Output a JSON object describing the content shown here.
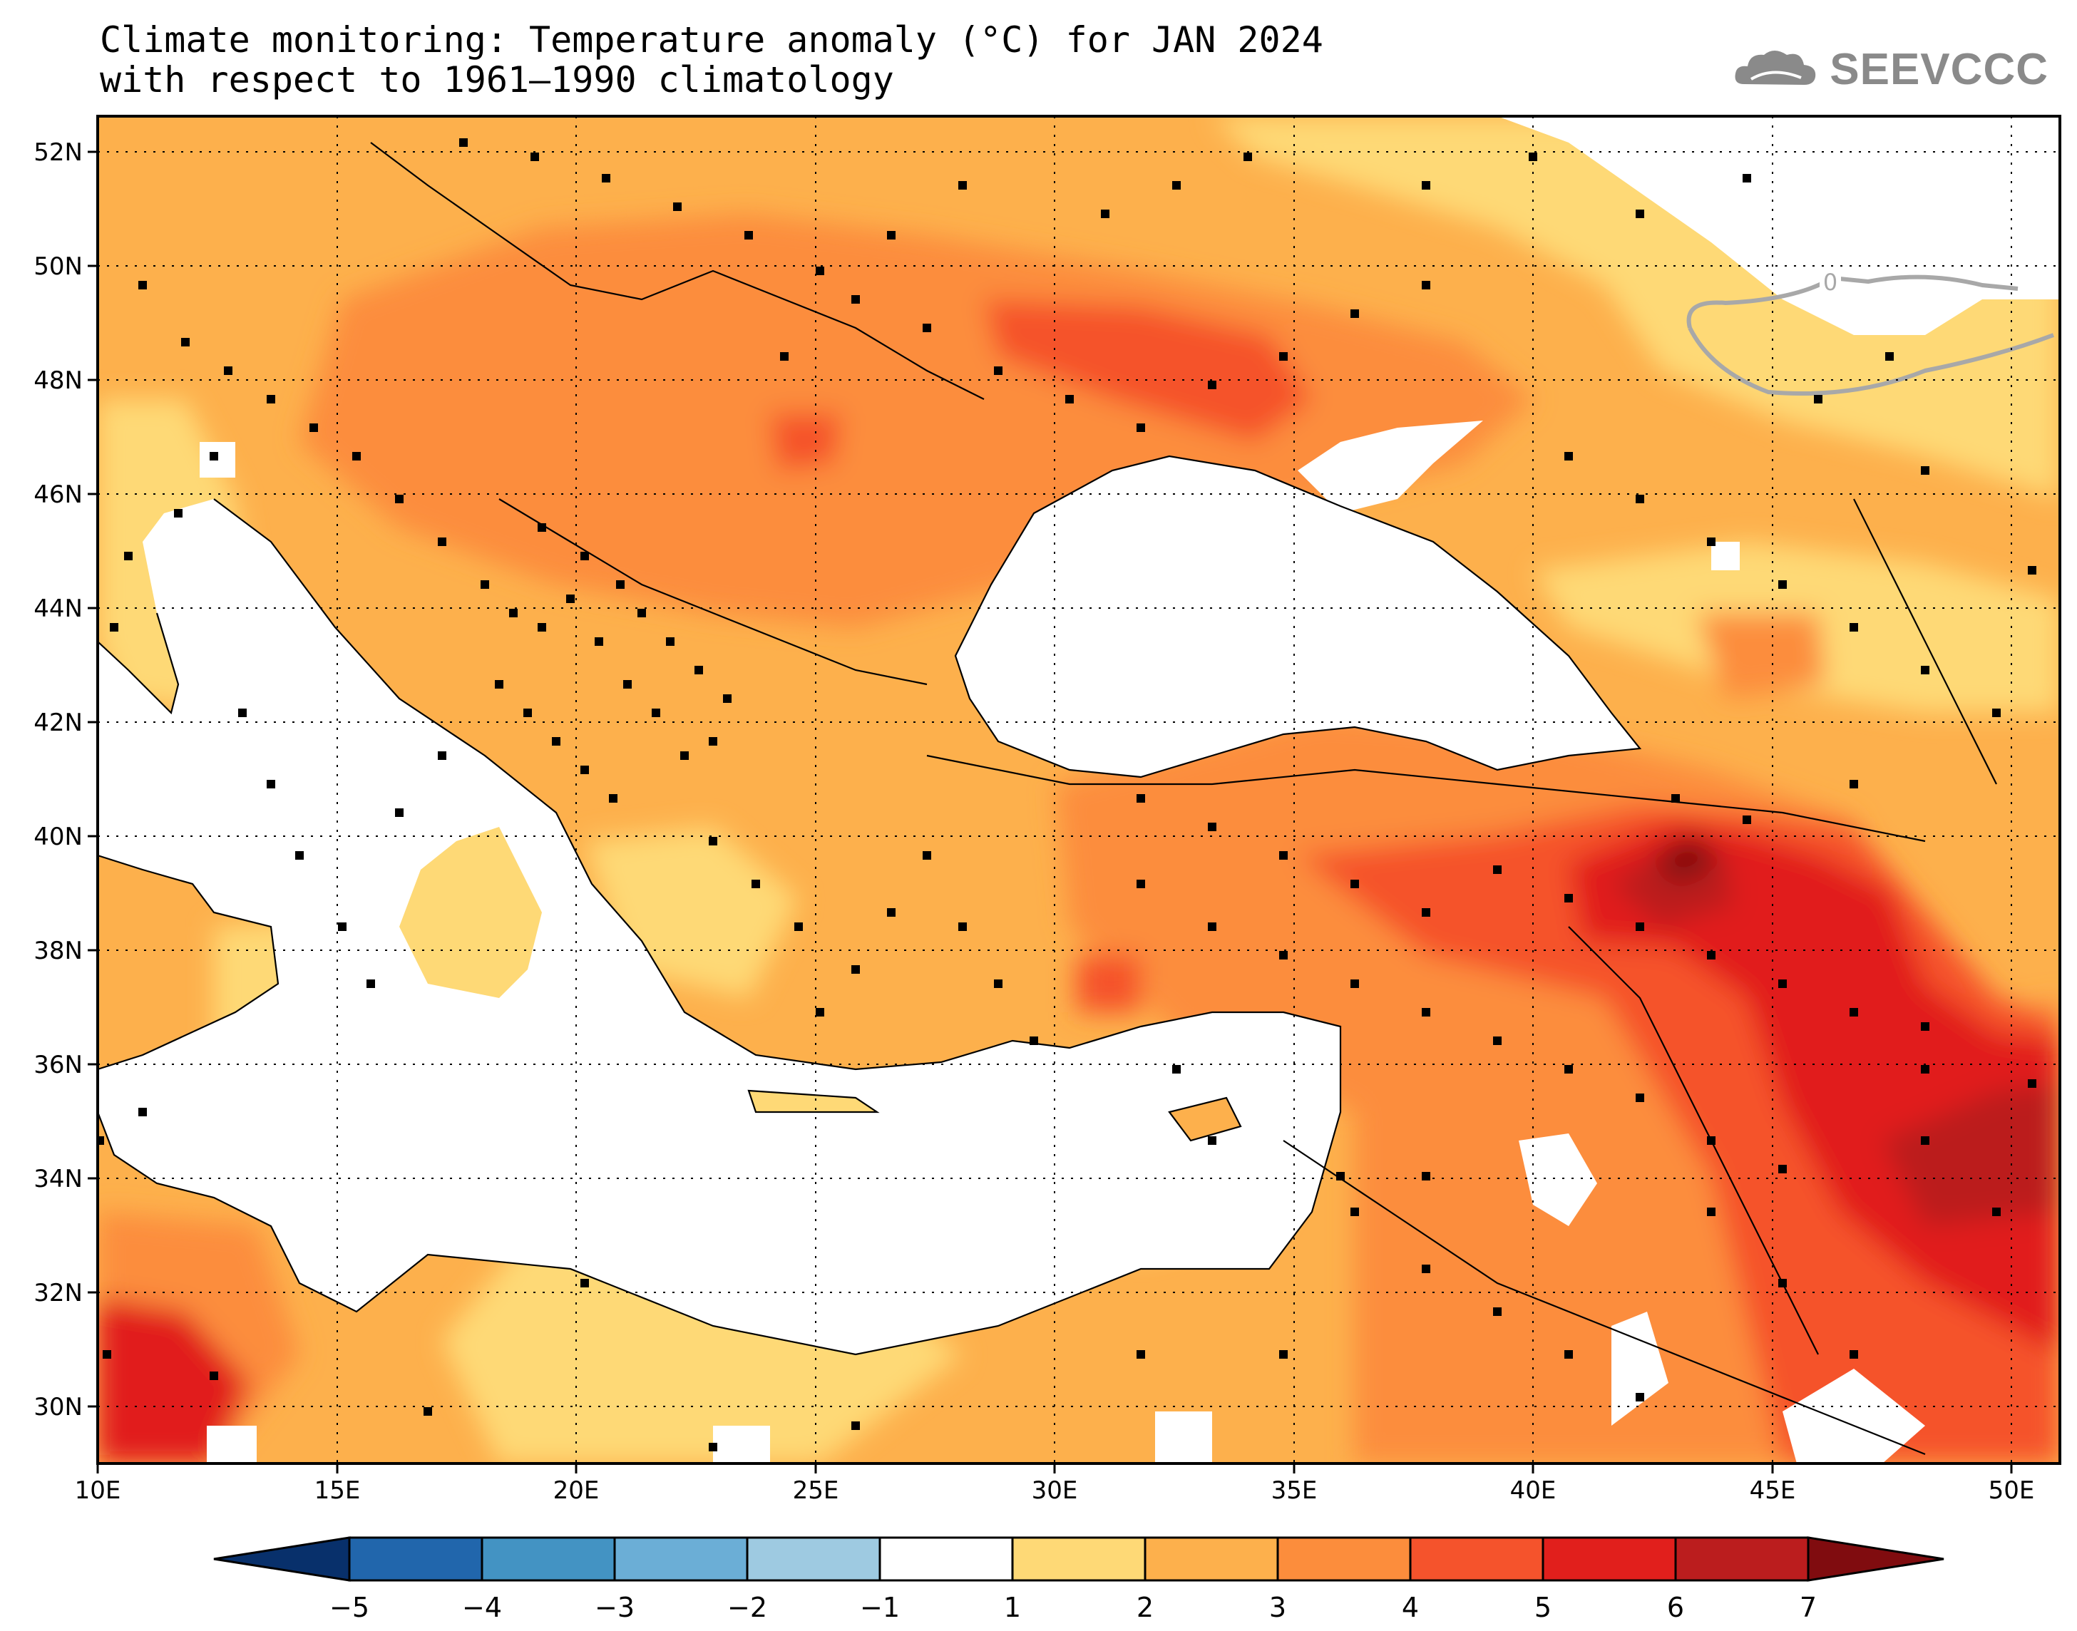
{
  "title": {
    "line1": "Climate monitoring: Temperature anomaly (°C) for JAN 2024",
    "line2": "with respect to 1961–1990 climatology"
  },
  "logo": {
    "text": "SEEVCCC",
    "icon": "cloud-icon",
    "color": "#8a8a8a"
  },
  "map": {
    "lon_range": [
      10,
      51
    ],
    "lat_range": [
      29,
      52.6
    ],
    "x_ticks": [
      "10E",
      "15E",
      "20E",
      "25E",
      "30E",
      "35E",
      "40E",
      "45E",
      "50E"
    ],
    "y_ticks": [
      "30N",
      "32N",
      "34N",
      "36N",
      "38N",
      "40N",
      "42N",
      "44N",
      "46N",
      "48N",
      "50N",
      "52N"
    ],
    "contour_label": "0",
    "grid": "dotted"
  },
  "colorbar": {
    "labels": [
      "−5",
      "−4",
      "−3",
      "−2",
      "−1",
      "1",
      "2",
      "3",
      "4",
      "5",
      "6",
      "7"
    ],
    "colors": {
      "lt_min5": "#08306b",
      "b_m5_m4": "#2166ac",
      "b_m4_m3": "#4393c3",
      "b_m3_m2": "#6baed6",
      "b_m2_m1": "#9ecae1",
      "b_m1_1": "#ffffff",
      "b_1_2": "#fed976",
      "b_2_3": "#fdb04c",
      "b_3_4": "#fc8d3c",
      "b_4_5": "#f5532c",
      "b_5_6": "#e11f1c",
      "b_6_7": "#bb1d1e",
      "gt_7": "#800c0f"
    }
  }
}
